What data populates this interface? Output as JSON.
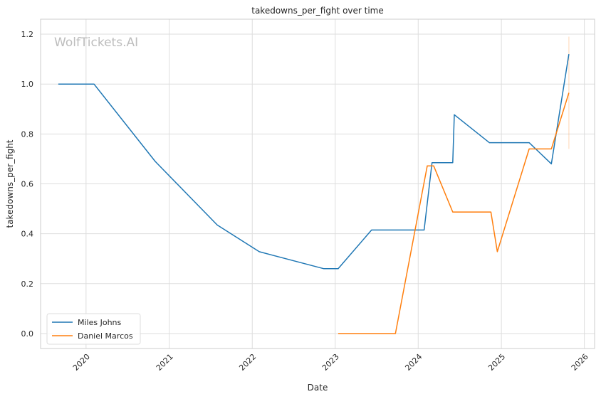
{
  "chart_data": {
    "type": "line",
    "title": "takedowns_per_fight over time",
    "xlabel": "Date",
    "ylabel": "takedowns_per_fight",
    "watermark": "WolfTickets.AI",
    "xlim": [
      "2019-06-15",
      "2026-02-15"
    ],
    "ylim": [
      -0.06,
      1.26
    ],
    "x_ticks": [
      "2020",
      "2021",
      "2022",
      "2023",
      "2024",
      "2025",
      "2026"
    ],
    "y_ticks": [
      "0.0",
      "0.2",
      "0.4",
      "0.6",
      "0.8",
      "1.0",
      "1.2"
    ],
    "y_tick_values": [
      0.0,
      0.2,
      0.4,
      0.6,
      0.8,
      1.0,
      1.2
    ],
    "grid": true,
    "legend_position": "lower-left",
    "series": [
      {
        "name": "Miles Johns",
        "color": "#1f77b4",
        "points": [
          {
            "x": "2019-09-01",
            "y": 1.0
          },
          {
            "x": "2020-02-05",
            "y": 1.0
          },
          {
            "x": "2020-10-31",
            "y": 0.69
          },
          {
            "x": "2021-07-31",
            "y": 0.435
          },
          {
            "x": "2022-02-01",
            "y": 0.328
          },
          {
            "x": "2022-11-12",
            "y": 0.26
          },
          {
            "x": "2023-01-14",
            "y": 0.26
          },
          {
            "x": "2023-06-10",
            "y": 0.415
          },
          {
            "x": "2024-01-27",
            "y": 0.415
          },
          {
            "x": "2024-03-02",
            "y": 0.685
          },
          {
            "x": "2024-06-01",
            "y": 0.685
          },
          {
            "x": "2024-06-08",
            "y": 0.877
          },
          {
            "x": "2024-11-09",
            "y": 0.765
          },
          {
            "x": "2025-05-03",
            "y": 0.765
          },
          {
            "x": "2025-08-09",
            "y": 0.68
          },
          {
            "x": "2025-10-25",
            "y": 1.12
          }
        ]
      },
      {
        "name": "Daniel Marcos",
        "color": "#ff7f0e",
        "points": [
          {
            "x": "2023-01-14",
            "y": 0.0
          },
          {
            "x": "2023-09-23",
            "y": 0.0
          },
          {
            "x": "2024-02-10",
            "y": 0.672
          },
          {
            "x": "2024-03-09",
            "y": 0.672
          },
          {
            "x": "2024-06-01",
            "y": 0.487
          },
          {
            "x": "2024-11-16",
            "y": 0.487
          },
          {
            "x": "2024-12-14",
            "y": 0.328
          },
          {
            "x": "2025-05-03",
            "y": 0.74
          },
          {
            "x": "2025-08-09",
            "y": 0.74
          },
          {
            "x": "2025-10-25",
            "y": 0.965
          }
        ]
      }
    ],
    "error_bars": [
      {
        "series": "Daniel Marcos",
        "x": "2025-10-25",
        "low": 0.74,
        "high": 1.19
      }
    ]
  }
}
